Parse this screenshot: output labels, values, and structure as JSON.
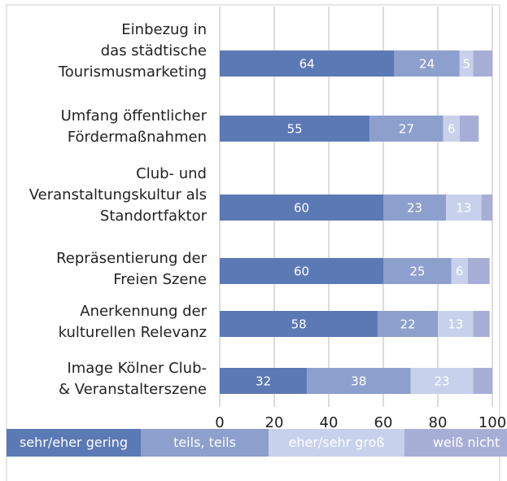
{
  "chart_data": {
    "type": "stacked_barh",
    "categories": [
      "Einbezug in\ndas städtische\nTourismusmarketing",
      "Umfang öffentlicher\nFördermaßnahmen",
      "Club- und\nVeranstaltungskultur als\nStandortfaktor",
      "Repräsentierung der\nFreien Szene",
      "Anerkennung der\nkulturellen Relevanz",
      "Image Kölner Club-\n& Veranstalterszene"
    ],
    "series": [
      {
        "name": "sehr/eher gering",
        "color": "#5b79b5",
        "data_labels": true,
        "values": [
          64,
          55,
          60,
          60,
          58,
          32
        ]
      },
      {
        "name": "teils, teils",
        "color": "#8d9fcd",
        "data_labels": true,
        "values": [
          24,
          27,
          23,
          25,
          22,
          38
        ]
      },
      {
        "name": "eher/sehr groß",
        "color": "#c8d1ec",
        "data_labels": true,
        "values": [
          5,
          6,
          13,
          6,
          13,
          23
        ]
      },
      {
        "name": "weiß nicht",
        "color": "#a7aed6",
        "data_labels": false,
        "values": [
          7,
          7,
          4,
          8,
          6,
          7
        ]
      }
    ],
    "xlim": [
      0,
      100
    ],
    "xticks": [
      0,
      20,
      40,
      60,
      80,
      100
    ],
    "grid": true
  }
}
